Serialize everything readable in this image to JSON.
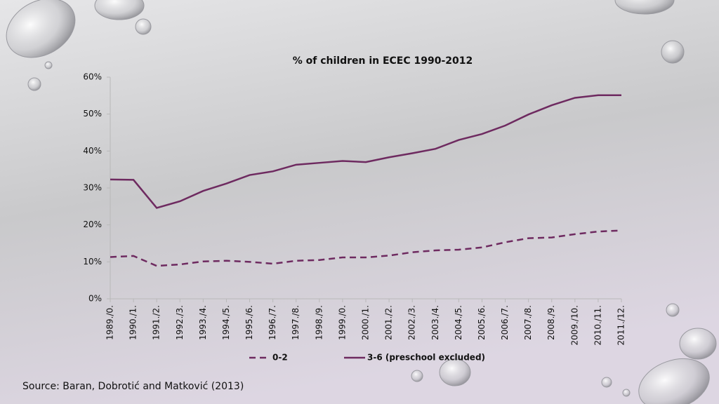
{
  "chart_data": {
    "type": "line",
    "title": "% of children in ECEC 1990-2012",
    "categories": [
      "1989./0.",
      "1990./1.",
      "1991./2.",
      "1992./3.",
      "1993./4.",
      "1994./5.",
      "1995./6.",
      "1996./7.",
      "1997./8.",
      "1998./9.",
      "1999./0.",
      "2000./1.",
      "2001./2.",
      "2002./3.",
      "2003./4.",
      "2004./5.",
      "2005./6.",
      "2006./7.",
      "2007./8.",
      "2008./9.",
      "2009./10.",
      "2010./11.",
      "2011./12."
    ],
    "series": [
      {
        "name": "0-2",
        "color": "#6e2a60",
        "line_style": "dashed",
        "values": [
          11.3,
          11.6,
          8.9,
          9.3,
          10.1,
          10.3,
          10.0,
          9.5,
          10.3,
          10.5,
          11.2,
          11.2,
          11.7,
          12.6,
          13.1,
          13.3,
          13.9,
          15.3,
          16.4,
          16.6,
          17.5,
          18.2,
          18.5
        ]
      },
      {
        "name": "3-6 (preschool excluded)",
        "color": "#6e2a60",
        "line_style": "solid",
        "values": [
          32.3,
          32.2,
          24.6,
          26.4,
          29.2,
          31.2,
          33.5,
          34.5,
          36.3,
          36.8,
          37.3,
          37.0,
          38.3,
          39.4,
          40.6,
          43.0,
          44.6,
          46.9,
          49.9,
          52.4,
          54.4,
          55.1,
          55.1
        ]
      }
    ],
    "ylim": [
      0,
      60
    ],
    "yticks": [
      {
        "value": 0,
        "label": "0%"
      },
      {
        "value": 10,
        "label": "10%"
      },
      {
        "value": 20,
        "label": "20%"
      },
      {
        "value": 30,
        "label": "30%"
      },
      {
        "value": 40,
        "label": "40%"
      },
      {
        "value": 50,
        "label": "50%"
      },
      {
        "value": 60,
        "label": "60%"
      }
    ],
    "grid": false,
    "legend": "bottom"
  },
  "source": "Source: Baran, Dobrotić and Matković (2013)"
}
